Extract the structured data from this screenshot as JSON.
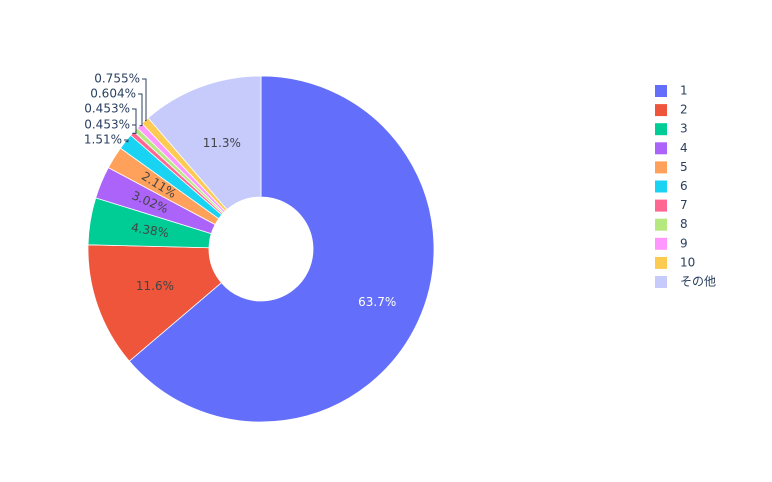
{
  "chart_data": {
    "type": "pie",
    "hole": true,
    "title": "",
    "legend_position": "right",
    "categories": [
      "1",
      "2",
      "3",
      "4",
      "5",
      "6",
      "7",
      "8",
      "9",
      "10",
      "その他"
    ],
    "values": [
      63.7,
      11.6,
      4.38,
      3.02,
      2.11,
      1.51,
      0.453,
      0.453,
      0.604,
      0.755,
      11.3
    ],
    "labels": [
      "63.7%",
      "11.6%",
      "4.38%",
      "3.02%",
      "2.11%",
      "1.51%",
      "0.453%",
      "0.453%",
      "0.604%",
      "0.755%",
      "11.3%"
    ],
    "colors": [
      "#636efa",
      "#ef553b",
      "#00cc96",
      "#ab63fa",
      "#ffa15a",
      "#19d3f3",
      "#ff6692",
      "#b6e880",
      "#ff97ff",
      "#fecb52",
      "#c6cbfc"
    ]
  }
}
